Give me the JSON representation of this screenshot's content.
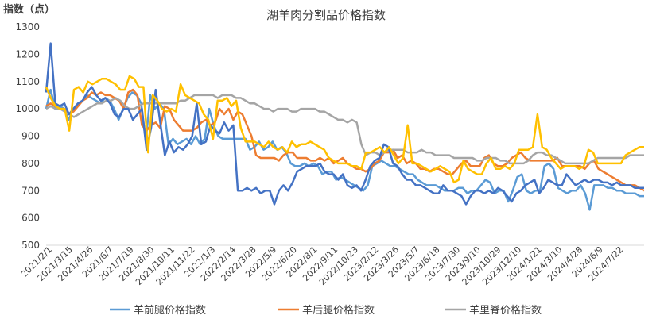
{
  "chart_data": {
    "type": "line",
    "title": "湖羊肉分割品价格指数",
    "ylabel": "指数（点）",
    "xlabel": "",
    "ylim": [
      500,
      1300
    ],
    "yticks": [
      500,
      600,
      700,
      800,
      900,
      1000,
      1100,
      1200,
      1300
    ],
    "grid": false,
    "legend_position": "bottom",
    "x_tick_labels": [
      "2021/2/1",
      "2021/3/15",
      "2021/4/26",
      "2021/6/7",
      "2021/7/19",
      "2021/8/30",
      "2021/10/11",
      "2021/11/22",
      "2022/1/3",
      "2022/2/14",
      "2022/3/28",
      "2022/5/9",
      "2022/6/20",
      "2022/8/1",
      "2022/9/11",
      "2022/10/23",
      "2023/2/12",
      "2023/3/26",
      "2023/5/7",
      "2023/6/18",
      "2023/7/30",
      "2023/9/10",
      "2023/10/29",
      "2023/12/10",
      "2024/1/21",
      "2024/3/10",
      "2024/4/28",
      "2024/6/9",
      "2024/7/22"
    ],
    "series": [
      {
        "name": "羊前腿价格指数",
        "color": "#5B9BD5",
        "values": [
          1000,
          1070,
          1000,
          1010,
          1000,
          960,
          1000,
          1020,
          1030,
          1050,
          1040,
          1030,
          1020,
          1040,
          1030,
          1000,
          960,
          1000,
          1040,
          1060,
          1050,
          1020,
          880,
          1050,
          1000,
          1020,
          1000,
          870,
          890,
          870,
          880,
          890,
          870,
          900,
          870,
          890,
          1000,
          940,
          900,
          890,
          890,
          890,
          890,
          890,
          890,
          850,
          860,
          880,
          850,
          860,
          880,
          850,
          860,
          840,
          800,
          790,
          790,
          800,
          790,
          800,
          790,
          760,
          770,
          770,
          740,
          750,
          740,
          730,
          720,
          710,
          700,
          720,
          790,
          800,
          810,
          800,
          790,
          790,
          780,
          770,
          760,
          760,
          740,
          730,
          720,
          720,
          720,
          710,
          700,
          700,
          700,
          710,
          710,
          690,
          700,
          700,
          720,
          740,
          730,
          690,
          700,
          700,
          660,
          700,
          750,
          760,
          700,
          690,
          700,
          700,
          790,
          800,
          780,
          710,
          700,
          690,
          700,
          700,
          720,
          690,
          630,
          720,
          720,
          720,
          710,
          710,
          700,
          700,
          690,
          690,
          690,
          680,
          680
        ]
      },
      {
        "name": "羊后腿价格指数",
        "color": "#ED7D31",
        "values": [
          1010,
          1020,
          1010,
          1000,
          1000,
          980,
          990,
          1010,
          1030,
          1040,
          1060,
          1050,
          1060,
          1050,
          1050,
          1040,
          1030,
          1000,
          1060,
          1070,
          1050,
          940,
          920,
          940,
          950,
          930,
          1010,
          1000,
          960,
          940,
          920,
          920,
          920,
          930,
          950,
          960,
          940,
          950,
          1000,
          980,
          1000,
          960,
          990,
          980,
          940,
          900,
          830,
          820,
          820,
          820,
          820,
          810,
          830,
          840,
          840,
          820,
          820,
          820,
          810,
          810,
          820,
          810,
          820,
          800,
          810,
          820,
          800,
          790,
          780,
          780,
          770,
          780,
          800,
          810,
          840,
          840,
          850,
          820,
          830,
          800,
          810,
          800,
          780,
          780,
          770,
          780,
          780,
          770,
          760,
          760,
          780,
          800,
          810,
          790,
          790,
          790,
          820,
          830,
          800,
          790,
          790,
          800,
          820,
          830,
          840,
          820,
          810,
          810,
          810,
          810,
          810,
          810,
          820,
          790,
          790,
          790,
          790,
          790,
          780,
          800,
          810,
          780,
          770,
          760,
          750,
          740,
          730,
          720,
          720,
          720,
          710,
          700
        ]
      },
      {
        "name": "羊里脊价格指数",
        "color": "#A5A5A5",
        "values": [
          1000,
          1010,
          1000,
          1000,
          990,
          980,
          970,
          980,
          990,
          1000,
          1010,
          1020,
          1020,
          1030,
          1030,
          1040,
          1030,
          1010,
          1000,
          1000,
          1010,
          1020,
          1020,
          1020,
          1020,
          1020,
          1020,
          1020,
          1020,
          1030,
          1030,
          1040,
          1050,
          1050,
          1050,
          1050,
          1050,
          1040,
          1050,
          1050,
          1050,
          1040,
          1040,
          1030,
          1020,
          1020,
          1010,
          1000,
          1000,
          990,
          1000,
          1000,
          1000,
          990,
          990,
          1000,
          1000,
          1000,
          1000,
          990,
          990,
          980,
          970,
          960,
          960,
          950,
          960,
          950,
          870,
          830,
          840,
          840,
          830,
          840,
          850,
          850,
          850,
          850,
          840,
          840,
          840,
          850,
          840,
          840,
          830,
          830,
          830,
          830,
          820,
          820,
          820,
          820,
          820,
          810,
          810,
          820,
          820,
          820,
          810,
          810,
          800,
          800,
          800,
          800,
          810,
          830,
          840,
          840,
          830,
          830,
          820,
          810,
          800,
          800,
          800,
          800,
          800,
          800,
          810,
          820,
          820,
          820,
          820,
          820,
          820,
          820,
          830,
          830,
          830,
          830
        ]
      },
      {
        "name": "",
        "color": "#4472C4",
        "values": [
          1060,
          1240,
          1020,
          1010,
          1020,
          980,
          1000,
          1020,
          1030,
          1060,
          1080,
          1050,
          1030,
          1040,
          1020,
          980,
          970,
          1000,
          1000,
          960,
          980,
          1000,
          850,
          930,
          1070,
          950,
          830,
          880,
          840,
          860,
          850,
          870,
          900,
          1020,
          870,
          880,
          940,
          920,
          910,
          950,
          920,
          940,
          700,
          700,
          710,
          700,
          710,
          690,
          700,
          700,
          650,
          700,
          720,
          700,
          730,
          770,
          780,
          790,
          790,
          790,
          800,
          770,
          760,
          760,
          740,
          760,
          720,
          710,
          720,
          700,
          740,
          790,
          810,
          820,
          870,
          860,
          800,
          790,
          760,
          740,
          740,
          720,
          720,
          710,
          700,
          690,
          690,
          720,
          700,
          700,
          690,
          680,
          650,
          680,
          700,
          700,
          690,
          700,
          690,
          710,
          700,
          680,
          660,
          690,
          700,
          720,
          730,
          740,
          690,
          710,
          740,
          730,
          720,
          720,
          760,
          740,
          720,
          730,
          740,
          730,
          740,
          740,
          730,
          730,
          720,
          730,
          720,
          720,
          720,
          710,
          710,
          710
        ]
      },
      {
        "name": "",
        "color": "#FFC000",
        "values": [
          1080,
          1040,
          1010,
          1000,
          1000,
          920,
          1070,
          1080,
          1060,
          1100,
          1090,
          1100,
          1110,
          1110,
          1100,
          1090,
          1070,
          1070,
          1120,
          1110,
          1080,
          1080,
          840,
          1050,
          1030,
          1000,
          990,
          1000,
          990,
          1090,
          1050,
          1040,
          1030,
          1020,
          980,
          960,
          890,
          1030,
          1030,
          1040,
          1010,
          1030,
          930,
          880,
          880,
          880,
          870,
          860,
          880,
          860,
          850,
          860,
          840,
          880,
          860,
          870,
          870,
          880,
          870,
          860,
          850,
          820,
          810,
          800,
          800,
          800,
          790,
          790,
          780,
          840,
          840,
          850,
          860,
          840,
          860,
          830,
          800,
          820,
          940,
          800,
          800,
          790,
          780,
          770,
          780,
          790,
          780,
          770,
          730,
          740,
          810,
          780,
          770,
          760,
          760,
          800,
          820,
          780,
          780,
          790,
          780,
          800,
          850,
          850,
          850,
          860,
          980,
          860,
          850,
          820,
          800,
          780,
          790,
          790,
          790,
          780,
          790,
          850,
          840,
          800,
          800,
          800,
          800,
          800,
          800,
          830,
          840,
          850,
          860,
          860
        ]
      }
    ]
  }
}
